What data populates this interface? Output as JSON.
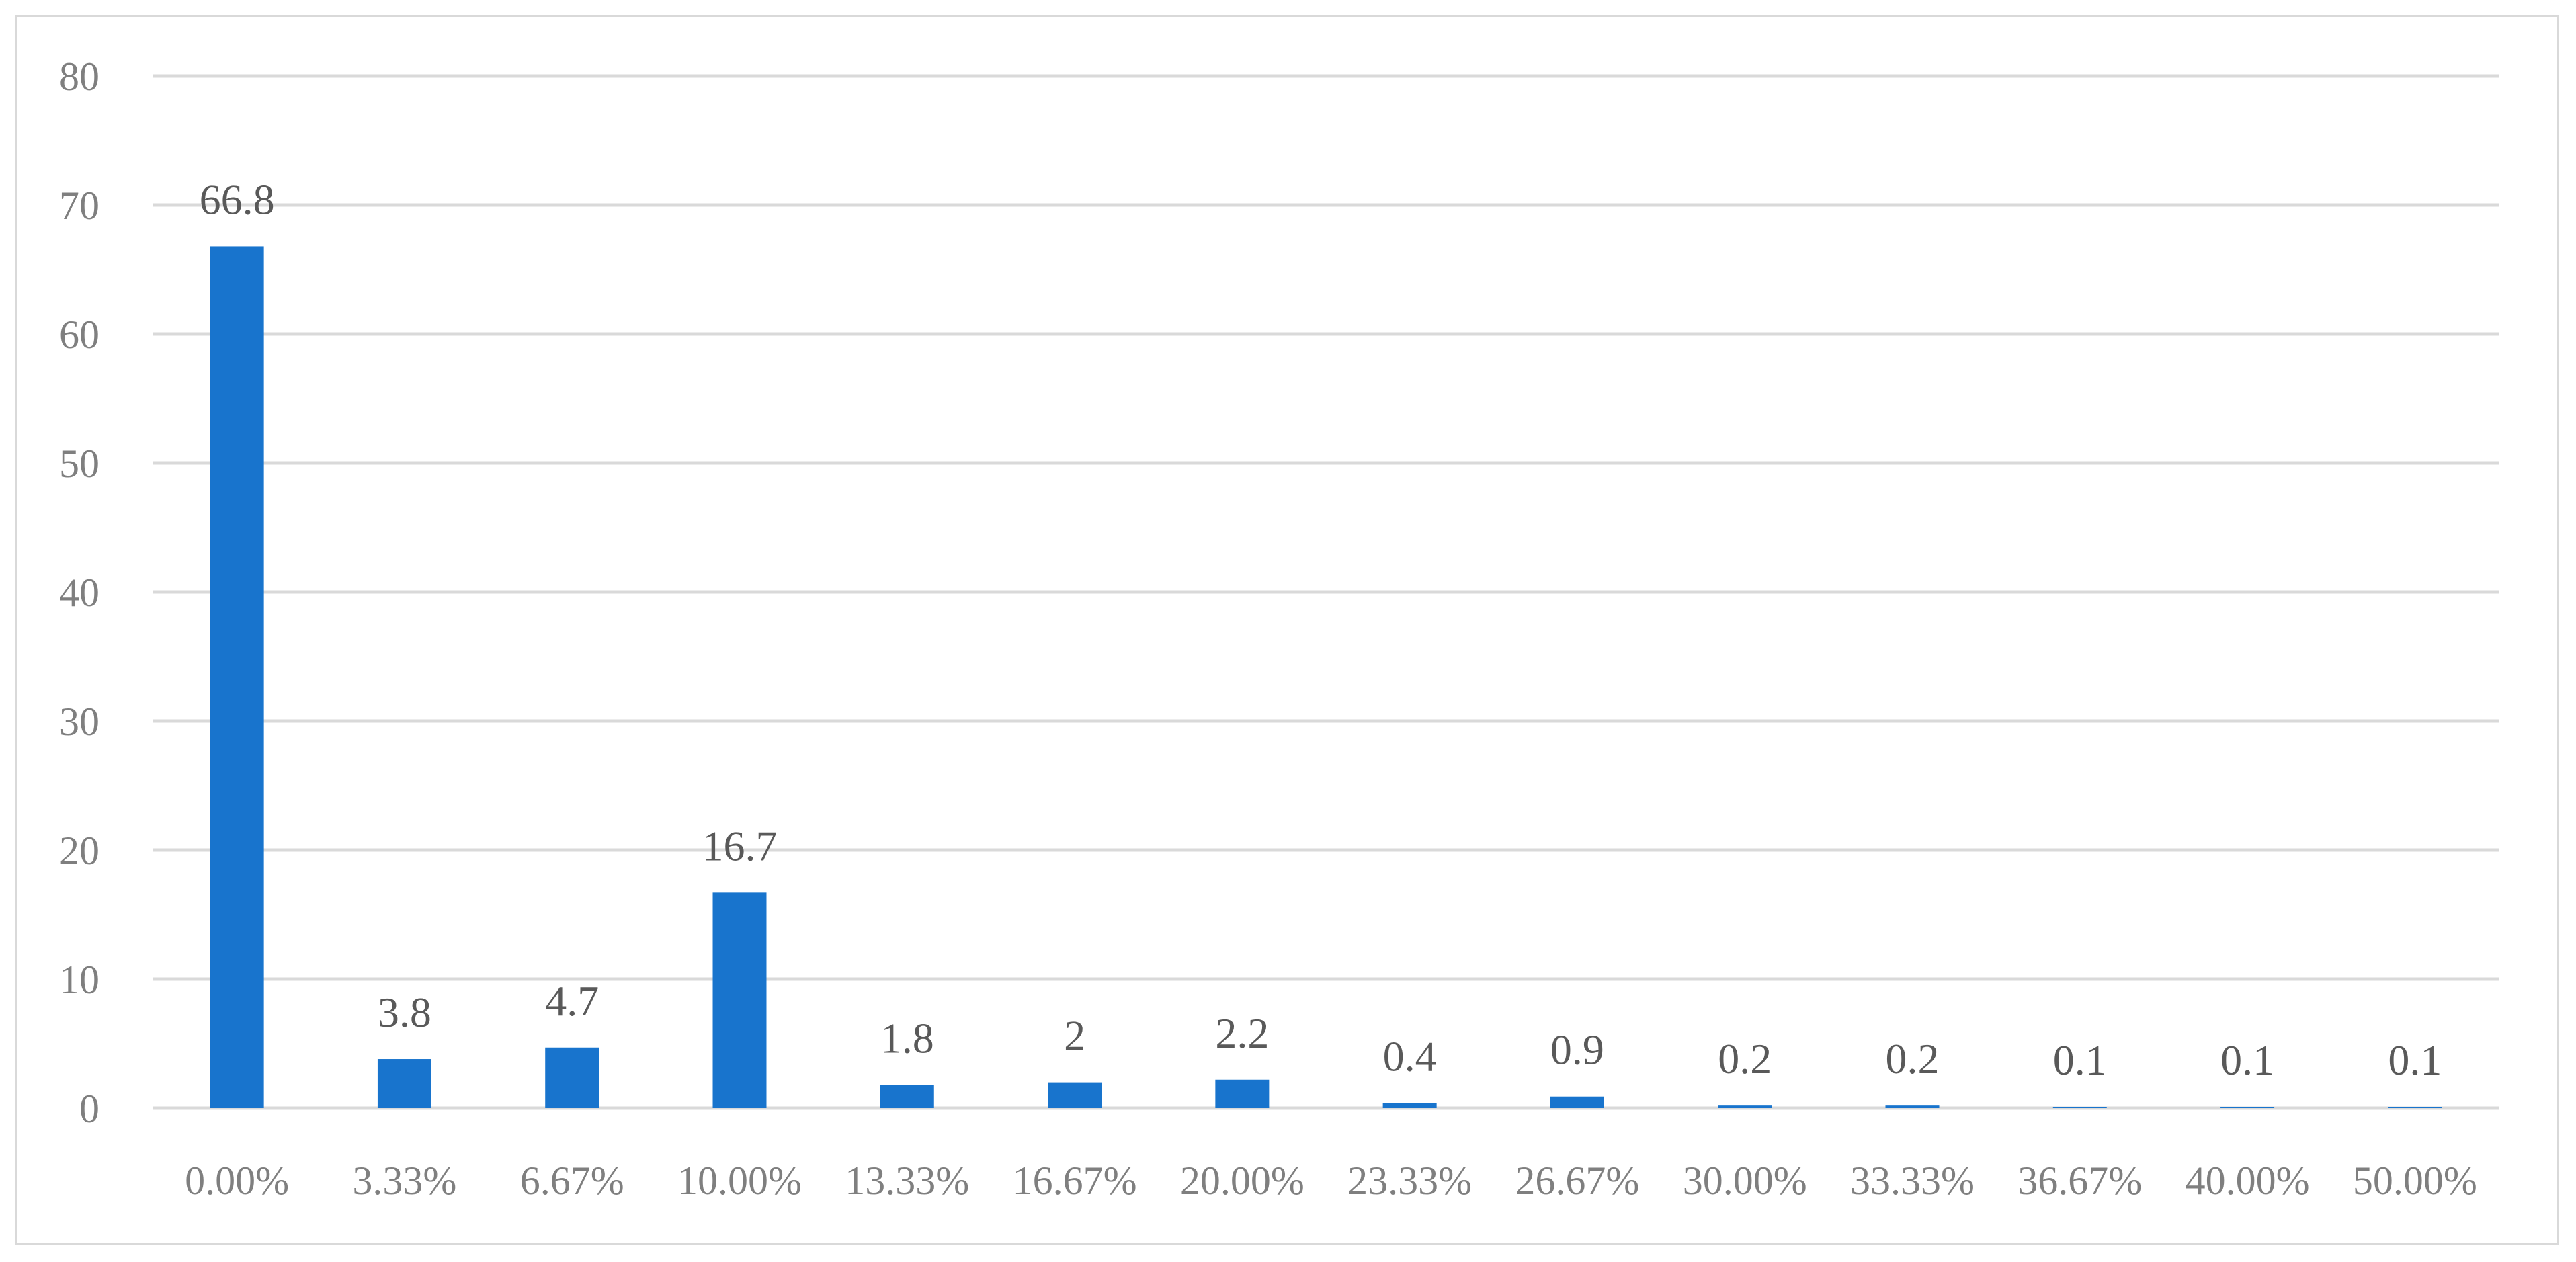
{
  "chart_data": {
    "type": "bar",
    "title": "",
    "xlabel": "",
    "ylabel": "",
    "categories": [
      "0.00%",
      "3.33%",
      "6.67%",
      "10.00%",
      "13.33%",
      "16.67%",
      "20.00%",
      "23.33%",
      "26.67%",
      "30.00%",
      "33.33%",
      "36.67%",
      "40.00%",
      "50.00%"
    ],
    "values": [
      66.8,
      3.8,
      4.7,
      16.7,
      1.8,
      2,
      2.2,
      0.4,
      0.9,
      0.2,
      0.2,
      0.1,
      0.1,
      0.1
    ],
    "data_labels": [
      "66.8",
      "3.8",
      "4.7",
      "16.7",
      "1.8",
      "2",
      "2.2",
      "0.4",
      "0.9",
      "0.2",
      "0.2",
      "0.1",
      "0.1",
      "0.1"
    ],
    "ylim": [
      0,
      80
    ],
    "yticks": [
      0,
      10,
      20,
      30,
      40,
      50,
      60,
      70,
      80
    ],
    "grid": true,
    "legend": "none",
    "colors": {
      "bar": "#1874cd",
      "grid": "#d9d9d9",
      "tick_text": "#7f7f7f",
      "label_text": "#595959"
    }
  }
}
